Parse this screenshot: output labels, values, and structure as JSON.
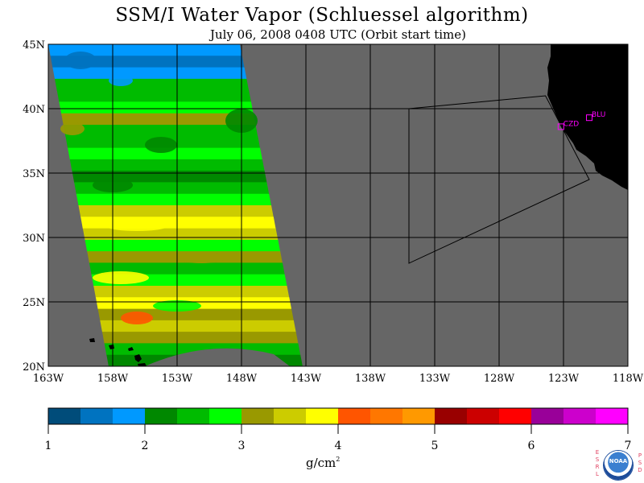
{
  "title": "SSM/I Water Vapor (Schluessel algorithm)",
  "subtitle": "July 06, 2008  0408 UTC  (Orbit start time)",
  "map": {
    "lon_labels": [
      "163W",
      "158W",
      "153W",
      "148W",
      "143W",
      "138W",
      "133W",
      "128W",
      "123W",
      "118W"
    ],
    "lat_labels": [
      "45N",
      "40N",
      "35N",
      "30N",
      "25N",
      "20N"
    ],
    "lon_range": [
      -163,
      -118
    ],
    "lat_range": [
      20,
      45
    ],
    "colors": {
      "no_data": "#666666",
      "land": "#000000",
      "grid": "#000000",
      "station": "#ff00ff"
    },
    "stations": [
      {
        "name": "CZD",
        "lon": -123.2,
        "lat": 38.6
      },
      {
        "name": "BLU",
        "lon": -121.0,
        "lat": 39.3
      }
    ],
    "flight_track": [
      {
        "lon": -135.0,
        "lat": 40.0
      },
      {
        "lon": -124.4,
        "lat": 41.0
      },
      {
        "lon": -121.0,
        "lat": 34.5
      },
      {
        "lon": -135.0,
        "lat": 28.0
      },
      {
        "lon": -135.0,
        "lat": 40.0
      }
    ]
  },
  "colorbar": {
    "unit_base": "g/cm",
    "unit_exp": "2",
    "tick_labels": [
      "1",
      "2",
      "3",
      "4",
      "5",
      "6",
      "7"
    ],
    "min": 1,
    "max": 7,
    "colors": [
      "#004c7a",
      "#0073c0",
      "#0099ff",
      "#008800",
      "#00bb00",
      "#00ff00",
      "#999900",
      "#cccc00",
      "#ffff00",
      "#ff5500",
      "#ff7700",
      "#ff9900",
      "#990000",
      "#cc0000",
      "#ff0000",
      "#990099",
      "#cc00cc",
      "#ff00ff"
    ]
  },
  "logo": {
    "left_text": "ESRL",
    "right_text": "PSD",
    "center_text": "NOAA"
  }
}
